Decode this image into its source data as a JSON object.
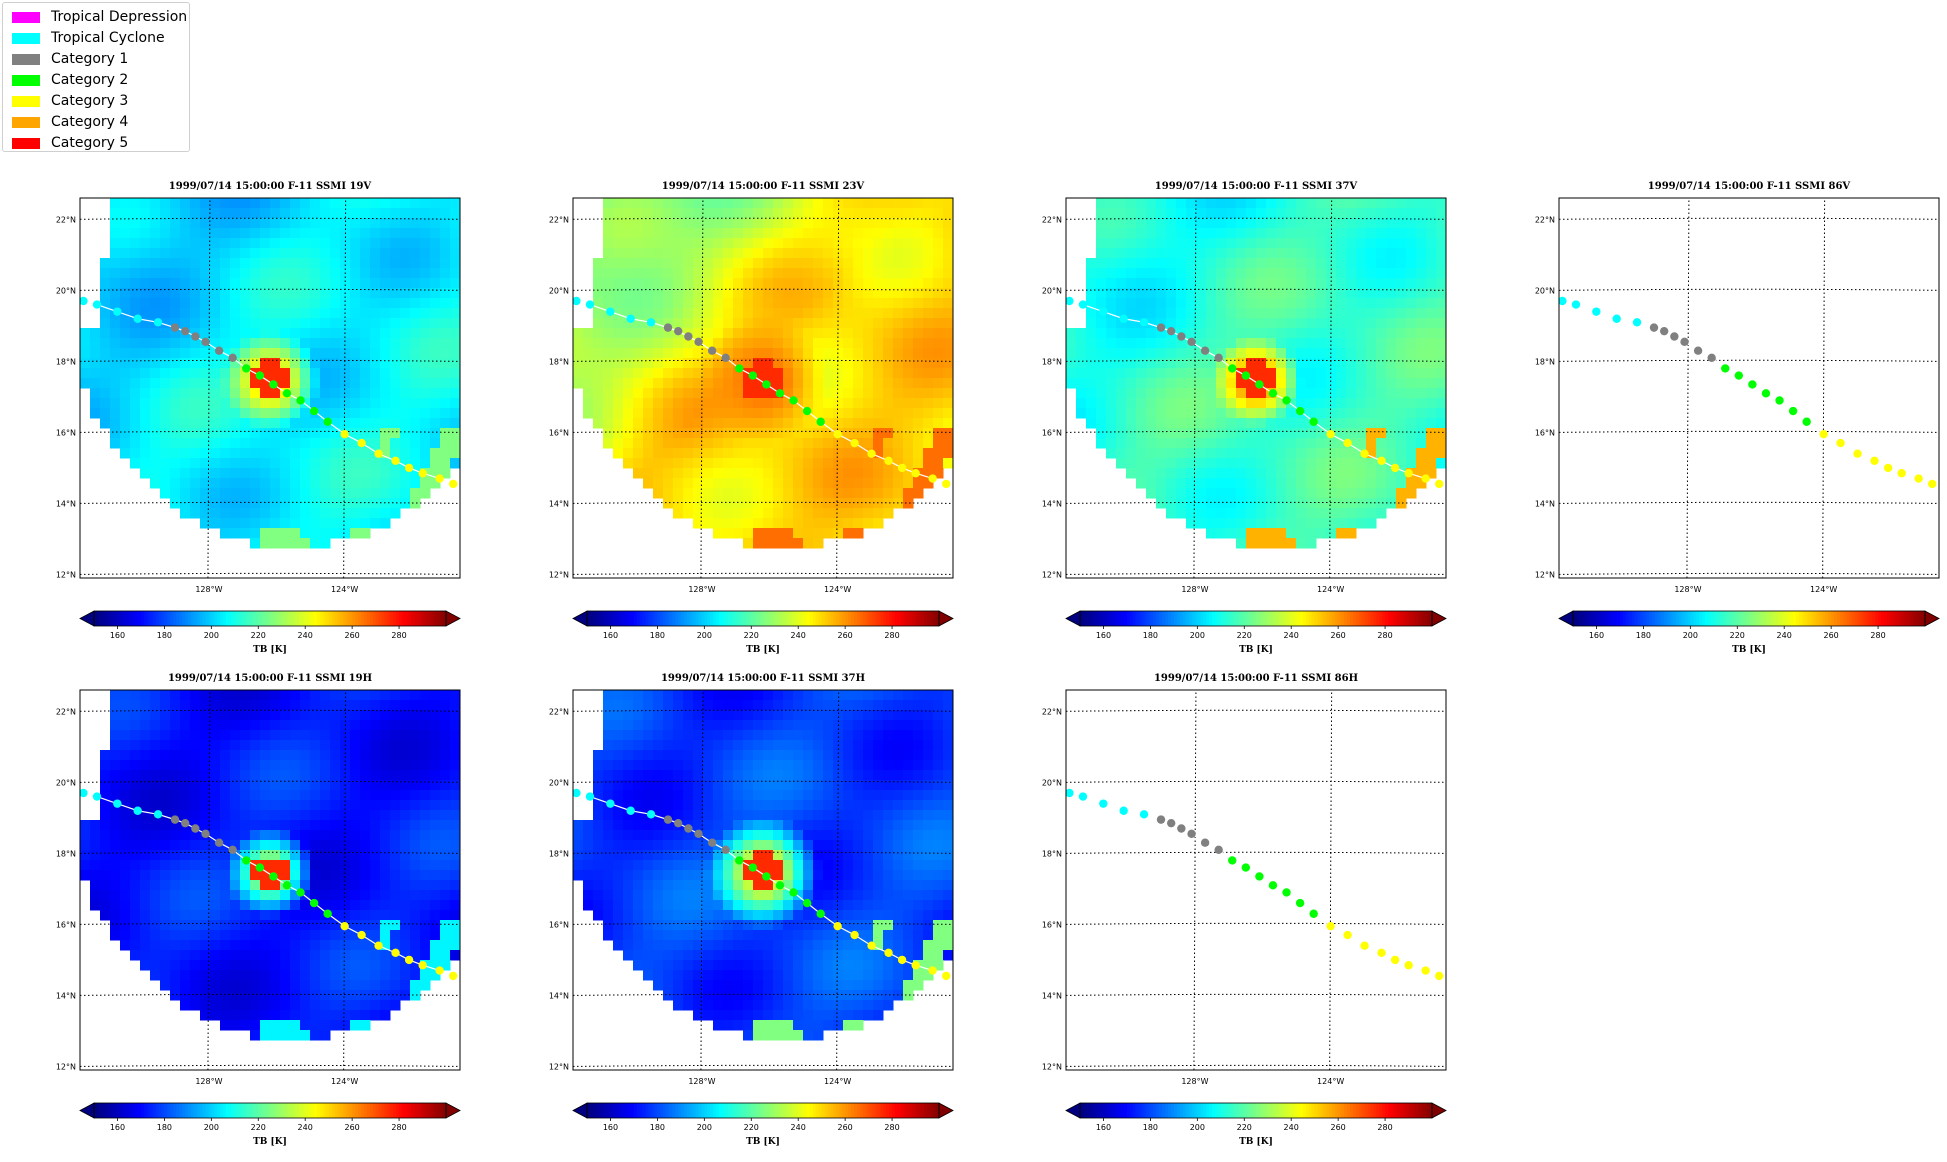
{
  "legend": {
    "items": [
      {
        "label": "Tropical Depression",
        "color": "#ff00ff"
      },
      {
        "label": "Tropical Cyclone",
        "color": "#00ffff"
      },
      {
        "label": "Category 1",
        "color": "#808080"
      },
      {
        "label": "Category 2",
        "color": "#00ff00"
      },
      {
        "label": "Category 3",
        "color": "#ffff00"
      },
      {
        "label": "Category 4",
        "color": "#ffa500"
      },
      {
        "label": "Category 5",
        "color": "#ff0000"
      }
    ]
  },
  "colorbar": {
    "label": "TB [K]",
    "ticks": [
      "160",
      "180",
      "200",
      "220",
      "240",
      "260",
      "280"
    ],
    "range": [
      150,
      300
    ],
    "colormap": "jet",
    "extend": "both"
  },
  "chart_data": [
    {
      "type": "heatmap",
      "title": "1999/07/14 15:00:00  F-11 SSMI 19V",
      "has_image": true,
      "field": "19V",
      "ylabels": [
        "22°N",
        "20°N",
        "18°N",
        "16°N",
        "14°N",
        "12°N"
      ],
      "xlabels": [
        "128°W",
        "124°W"
      ]
    },
    {
      "type": "heatmap",
      "title": "1999/07/14 15:00:00  F-11 SSMI 23V",
      "has_image": true,
      "field": "23V",
      "ylabels": [
        "22°N",
        "20°N",
        "18°N",
        "16°N",
        "14°N",
        "12°N"
      ],
      "xlabels": [
        "128°W",
        "124°W"
      ]
    },
    {
      "type": "heatmap",
      "title": "1999/07/14 15:00:00  F-11 SSMI 37V",
      "has_image": true,
      "field": "37V",
      "ylabels": [
        "22°N",
        "20°N",
        "18°N",
        "16°N",
        "14°N",
        "12°N"
      ],
      "xlabels": [
        "128°W",
        "124°W"
      ]
    },
    {
      "type": "heatmap",
      "title": "1999/07/14 15:00:00  F-11 SSMI 86V",
      "has_image": false,
      "field": "86V",
      "ylabels": [
        "22°N",
        "20°N",
        "18°N",
        "16°N",
        "14°N",
        "12°N"
      ],
      "xlabels": [
        "128°W",
        "124°W"
      ]
    },
    {
      "type": "heatmap",
      "title": "1999/07/14 15:00:00  F-11 SSMI 19H",
      "has_image": true,
      "field": "19H",
      "ylabels": [
        "22°N",
        "20°N",
        "18°N",
        "16°N",
        "14°N",
        "12°N"
      ],
      "xlabels": [
        "128°W",
        "124°W"
      ]
    },
    {
      "type": "heatmap",
      "title": "1999/07/14 15:00:00  F-11 SSMI 37H",
      "has_image": true,
      "field": "37H",
      "ylabels": [
        "22°N",
        "20°N",
        "18°N",
        "16°N",
        "14°N",
        "12°N"
      ],
      "xlabels": [
        "128°W",
        "124°W"
      ]
    },
    {
      "type": "heatmap",
      "title": "1999/07/14 15:00:00  F-11 SSMI 86H",
      "has_image": false,
      "field": "86H",
      "ylabels": [
        "22°N",
        "20°N",
        "18°N",
        "16°N",
        "14°N",
        "12°N"
      ],
      "xlabels": [
        "128°W",
        "124°W"
      ]
    }
  ],
  "track": {
    "points": [
      {
        "lon": -131.7,
        "lat": 19.7,
        "cat": 1
      },
      {
        "lon": -131.3,
        "lat": 19.6,
        "cat": 1
      },
      {
        "lon": -130.7,
        "lat": 19.4,
        "cat": 1
      },
      {
        "lon": -130.1,
        "lat": 19.2,
        "cat": 1
      },
      {
        "lon": -129.5,
        "lat": 19.1,
        "cat": 1
      },
      {
        "lon": -129.0,
        "lat": 18.95,
        "cat": 2
      },
      {
        "lon": -128.7,
        "lat": 18.85,
        "cat": 2
      },
      {
        "lon": -128.4,
        "lat": 18.7,
        "cat": 2
      },
      {
        "lon": -128.1,
        "lat": 18.55,
        "cat": 2
      },
      {
        "lon": -127.7,
        "lat": 18.3,
        "cat": 2
      },
      {
        "lon": -127.3,
        "lat": 18.1,
        "cat": 2
      },
      {
        "lon": -126.9,
        "lat": 17.8,
        "cat": 3
      },
      {
        "lon": -126.5,
        "lat": 17.6,
        "cat": 3
      },
      {
        "lon": -126.1,
        "lat": 17.35,
        "cat": 3
      },
      {
        "lon": -125.7,
        "lat": 17.1,
        "cat": 3
      },
      {
        "lon": -125.3,
        "lat": 16.9,
        "cat": 3
      },
      {
        "lon": -124.9,
        "lat": 16.6,
        "cat": 3
      },
      {
        "lon": -124.5,
        "lat": 16.3,
        "cat": 3
      },
      {
        "lon": -124.0,
        "lat": 15.95,
        "cat": 4
      },
      {
        "lon": -123.5,
        "lat": 15.7,
        "cat": 4
      },
      {
        "lon": -123.0,
        "lat": 15.4,
        "cat": 4
      },
      {
        "lon": -122.5,
        "lat": 15.2,
        "cat": 4
      },
      {
        "lon": -122.1,
        "lat": 15.0,
        "cat": 4
      },
      {
        "lon": -121.7,
        "lat": 14.85,
        "cat": 4
      },
      {
        "lon": -121.2,
        "lat": 14.7,
        "cat": 4
      },
      {
        "lon": -120.8,
        "lat": 14.55,
        "cat": 4
      }
    ]
  }
}
